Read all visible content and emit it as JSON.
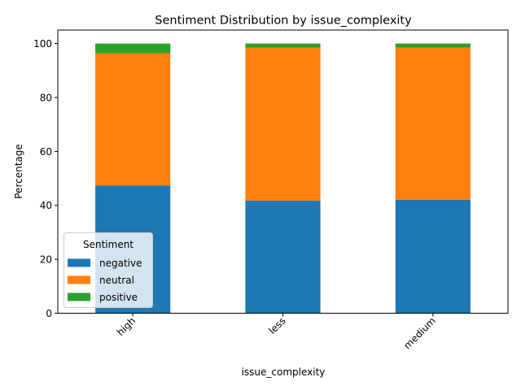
{
  "chart_data": {
    "type": "bar",
    "stacked": true,
    "title": "Sentiment Distribution by issue_complexity",
    "xlabel": "issue_complexity",
    "ylabel": "Percentage",
    "categories": [
      "high",
      "less",
      "medium"
    ],
    "ylim": [
      0,
      105
    ],
    "yticks": [
      0,
      20,
      40,
      60,
      80,
      100
    ],
    "grid": false,
    "legend": {
      "title": "Sentiment",
      "placement": "lower-left"
    },
    "series": [
      {
        "name": "negative",
        "color": "#1f77b4",
        "values": [
          47.4,
          41.8,
          42.1
        ]
      },
      {
        "name": "neutral",
        "color": "#ff7f0e",
        "values": [
          49.0,
          56.7,
          56.4
        ]
      },
      {
        "name": "positive",
        "color": "#2ca02c",
        "values": [
          3.6,
          1.5,
          1.5
        ]
      }
    ]
  }
}
